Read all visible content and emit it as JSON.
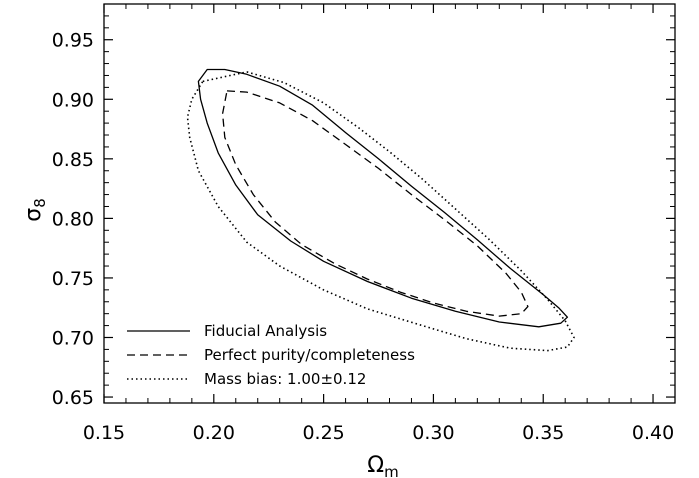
{
  "chart_data": {
    "type": "line",
    "title": "",
    "xlabel": "Ω",
    "xlabel_sub": "m",
    "ylabel": "σ",
    "ylabel_sub": "8",
    "xlim": [
      0.15,
      0.41
    ],
    "ylim": [
      0.645,
      0.98
    ],
    "xticks": [
      0.15,
      0.2,
      0.25,
      0.3,
      0.35,
      0.4
    ],
    "xtick_labels": [
      "0.15",
      "0.20",
      "0.25",
      "0.30",
      "0.35",
      "0.40"
    ],
    "yticks": [
      0.65,
      0.7,
      0.75,
      0.8,
      0.85,
      0.9,
      0.95
    ],
    "ytick_labels": [
      "0.65",
      "0.70",
      "0.75",
      "0.80",
      "0.85",
      "0.90",
      "0.95"
    ],
    "grid": false,
    "legend_position": "bottom-left",
    "series": [
      {
        "name": "Fiducial Analysis",
        "style": "solid",
        "color": "#000000",
        "points": [
          [
            0.197,
            0.925
          ],
          [
            0.205,
            0.925
          ],
          [
            0.215,
            0.921
          ],
          [
            0.23,
            0.911
          ],
          [
            0.245,
            0.895
          ],
          [
            0.26,
            0.872
          ],
          [
            0.275,
            0.85
          ],
          [
            0.29,
            0.827
          ],
          [
            0.305,
            0.805
          ],
          [
            0.32,
            0.782
          ],
          [
            0.335,
            0.758
          ],
          [
            0.35,
            0.736
          ],
          [
            0.357,
            0.725
          ],
          [
            0.361,
            0.717
          ],
          [
            0.358,
            0.712
          ],
          [
            0.348,
            0.709
          ],
          [
            0.33,
            0.713
          ],
          [
            0.31,
            0.722
          ],
          [
            0.29,
            0.733
          ],
          [
            0.27,
            0.747
          ],
          [
            0.25,
            0.764
          ],
          [
            0.235,
            0.781
          ],
          [
            0.22,
            0.803
          ],
          [
            0.21,
            0.828
          ],
          [
            0.202,
            0.855
          ],
          [
            0.197,
            0.88
          ],
          [
            0.194,
            0.9
          ],
          [
            0.193,
            0.915
          ],
          [
            0.197,
            0.925
          ]
        ]
      },
      {
        "name": "Perfect purity/completeness",
        "style": "dashed",
        "color": "#000000",
        "points": [
          [
            0.206,
            0.907
          ],
          [
            0.215,
            0.906
          ],
          [
            0.23,
            0.897
          ],
          [
            0.245,
            0.882
          ],
          [
            0.26,
            0.862
          ],
          [
            0.275,
            0.842
          ],
          [
            0.29,
            0.82
          ],
          [
            0.305,
            0.799
          ],
          [
            0.32,
            0.777
          ],
          [
            0.333,
            0.754
          ],
          [
            0.34,
            0.738
          ],
          [
            0.343,
            0.726
          ],
          [
            0.34,
            0.72
          ],
          [
            0.33,
            0.718
          ],
          [
            0.315,
            0.722
          ],
          [
            0.3,
            0.729
          ],
          [
            0.285,
            0.738
          ],
          [
            0.27,
            0.749
          ],
          [
            0.255,
            0.762
          ],
          [
            0.24,
            0.778
          ],
          [
            0.228,
            0.797
          ],
          [
            0.218,
            0.82
          ],
          [
            0.21,
            0.845
          ],
          [
            0.205,
            0.868
          ],
          [
            0.204,
            0.888
          ],
          [
            0.206,
            0.907
          ]
        ]
      },
      {
        "name": "Mass bias: 1.00±0.12",
        "style": "dotted",
        "color": "#000000",
        "points": [
          [
            0.195,
            0.915
          ],
          [
            0.215,
            0.923
          ],
          [
            0.232,
            0.914
          ],
          [
            0.25,
            0.897
          ],
          [
            0.266,
            0.876
          ],
          [
            0.28,
            0.856
          ],
          [
            0.295,
            0.833
          ],
          [
            0.31,
            0.808
          ],
          [
            0.325,
            0.783
          ],
          [
            0.34,
            0.756
          ],
          [
            0.352,
            0.732
          ],
          [
            0.36,
            0.714
          ],
          [
            0.364,
            0.7
          ],
          [
            0.361,
            0.692
          ],
          [
            0.352,
            0.689
          ],
          [
            0.335,
            0.691
          ],
          [
            0.315,
            0.699
          ],
          [
            0.295,
            0.71
          ],
          [
            0.27,
            0.724
          ],
          [
            0.25,
            0.74
          ],
          [
            0.23,
            0.76
          ],
          [
            0.215,
            0.78
          ],
          [
            0.202,
            0.81
          ],
          [
            0.193,
            0.84
          ],
          [
            0.189,
            0.868
          ],
          [
            0.188,
            0.885
          ],
          [
            0.19,
            0.9
          ],
          [
            0.195,
            0.915
          ]
        ]
      }
    ],
    "legend": [
      {
        "label": "Fiducial Analysis",
        "style": "solid"
      },
      {
        "label": "Perfect purity/completeness",
        "style": "dashed"
      },
      {
        "label": "Mass bias: 1.00±0.12",
        "style": "dotted"
      }
    ]
  }
}
